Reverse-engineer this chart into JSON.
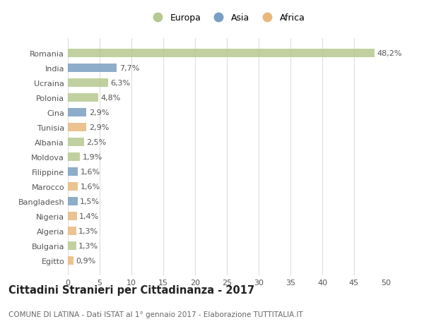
{
  "categories": [
    "Romania",
    "India",
    "Ucraina",
    "Polonia",
    "Cina",
    "Tunisia",
    "Albania",
    "Moldova",
    "Filippine",
    "Marocco",
    "Bangladesh",
    "Nigeria",
    "Algeria",
    "Bulgaria",
    "Egitto"
  ],
  "values": [
    48.2,
    7.7,
    6.3,
    4.8,
    2.9,
    2.9,
    2.5,
    1.9,
    1.6,
    1.6,
    1.5,
    1.4,
    1.3,
    1.3,
    0.9
  ],
  "labels": [
    "48,2%",
    "7,7%",
    "6,3%",
    "4,8%",
    "2,9%",
    "2,9%",
    "2,5%",
    "1,9%",
    "1,6%",
    "1,6%",
    "1,5%",
    "1,4%",
    "1,3%",
    "1,3%",
    "0,9%"
  ],
  "continent": [
    "Europa",
    "Asia",
    "Europa",
    "Europa",
    "Asia",
    "Africa",
    "Europa",
    "Europa",
    "Asia",
    "Africa",
    "Asia",
    "Africa",
    "Africa",
    "Europa",
    "Africa"
  ],
  "colors": {
    "Europa": "#b5c98e",
    "Asia": "#7a9fc2",
    "Africa": "#e8b97e"
  },
  "legend_labels": [
    "Europa",
    "Asia",
    "Africa"
  ],
  "legend_colors": [
    "#b5c98e",
    "#7a9fc2",
    "#e8b97e"
  ],
  "xlim": [
    0,
    50
  ],
  "xticks": [
    0,
    5,
    10,
    15,
    20,
    25,
    30,
    35,
    40,
    45,
    50
  ],
  "title": "Cittadini Stranieri per Cittadinanza - 2017",
  "subtitle": "COMUNE DI LATINA - Dati ISTAT al 1° gennaio 2017 - Elaborazione TUTTITALIA.IT",
  "background_color": "#ffffff",
  "grid_color": "#dddddd",
  "label_fontsize": 8,
  "tick_fontsize": 8,
  "title_fontsize": 10.5,
  "subtitle_fontsize": 7.5
}
